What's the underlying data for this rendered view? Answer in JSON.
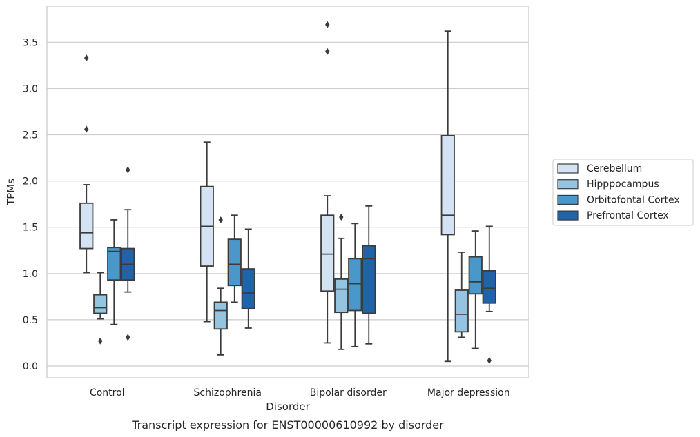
{
  "chart_data": {
    "type": "box",
    "title": "",
    "caption": "Transcript expression for ENST00000610992 by disorder",
    "xlabel": "Disorder",
    "ylabel": "TPMs",
    "ylim": [
      -0.12,
      3.9
    ],
    "yticks": [
      0.0,
      0.5,
      1.0,
      1.5,
      2.0,
      2.5,
      3.0,
      3.5
    ],
    "ytick_labels": [
      "0.0",
      "0.5",
      "1.0",
      "1.5",
      "2.0",
      "2.5",
      "3.0",
      "3.5"
    ],
    "grid": "horizontal",
    "legend_position": "right",
    "categories": [
      "Control",
      "Schizophrenia",
      "Bipolar disorder",
      "Major depression"
    ],
    "series": [
      {
        "name": "Cerebellum",
        "color": "#d3e3f3",
        "boxes": [
          {
            "whisker_low": 1.01,
            "q1": 1.27,
            "median": 1.44,
            "q3": 1.76,
            "whisker_high": 1.96,
            "outliers": [
              2.56,
              3.33
            ]
          },
          {
            "whisker_low": 0.48,
            "q1": 1.08,
            "median": 1.51,
            "q3": 1.94,
            "whisker_high": 2.42,
            "outliers": []
          },
          {
            "whisker_low": 0.25,
            "q1": 0.81,
            "median": 1.21,
            "q3": 1.63,
            "whisker_high": 1.84,
            "outliers": [
              3.4,
              3.69
            ]
          },
          {
            "whisker_low": 0.05,
            "q1": 1.42,
            "median": 1.63,
            "q3": 2.49,
            "whisker_high": 3.62,
            "outliers": []
          }
        ]
      },
      {
        "name": "Hipppocampus",
        "color": "#94c4df",
        "boxes": [
          {
            "whisker_low": 0.51,
            "q1": 0.57,
            "median": 0.63,
            "q3": 0.77,
            "whisker_high": 1.01,
            "outliers": [
              0.27
            ]
          },
          {
            "whisker_low": 0.12,
            "q1": 0.4,
            "median": 0.6,
            "q3": 0.69,
            "whisker_high": 0.84,
            "outliers": [
              1.58
            ]
          },
          {
            "whisker_low": 0.18,
            "q1": 0.58,
            "median": 0.83,
            "q3": 0.94,
            "whisker_high": 1.38,
            "outliers": [
              1.61
            ]
          },
          {
            "whisker_low": 0.31,
            "q1": 0.37,
            "median": 0.56,
            "q3": 0.82,
            "whisker_high": 1.23,
            "outliers": []
          }
        ]
      },
      {
        "name": "Orbitofontal Cortex",
        "color": "#4a98c9",
        "boxes": [
          {
            "whisker_low": 0.45,
            "q1": 0.93,
            "median": 1.24,
            "q3": 1.28,
            "whisker_high": 1.58,
            "outliers": []
          },
          {
            "whisker_low": 0.69,
            "q1": 0.87,
            "median": 1.1,
            "q3": 1.37,
            "whisker_high": 1.63,
            "outliers": []
          },
          {
            "whisker_low": 0.21,
            "q1": 0.6,
            "median": 0.89,
            "q3": 1.16,
            "whisker_high": 1.54,
            "outliers": []
          },
          {
            "whisker_low": 0.19,
            "q1": 0.78,
            "median": 0.91,
            "q3": 1.18,
            "whisker_high": 1.46,
            "outliers": []
          }
        ]
      },
      {
        "name": "Prefrontal Cortex",
        "color": "#2163aa",
        "boxes": [
          {
            "whisker_low": 0.8,
            "q1": 0.93,
            "median": 1.1,
            "q3": 1.27,
            "whisker_high": 1.69,
            "outliers": [
              0.31,
              2.12
            ]
          },
          {
            "whisker_low": 0.41,
            "q1": 0.62,
            "median": 0.79,
            "q3": 1.05,
            "whisker_high": 1.48,
            "outliers": []
          },
          {
            "whisker_low": 0.24,
            "q1": 0.57,
            "median": 1.16,
            "q3": 1.3,
            "whisker_high": 1.73,
            "outliers": []
          },
          {
            "whisker_low": 0.59,
            "q1": 0.68,
            "median": 0.84,
            "q3": 1.03,
            "whisker_high": 1.51,
            "outliers": [
              0.06
            ]
          }
        ]
      }
    ]
  }
}
